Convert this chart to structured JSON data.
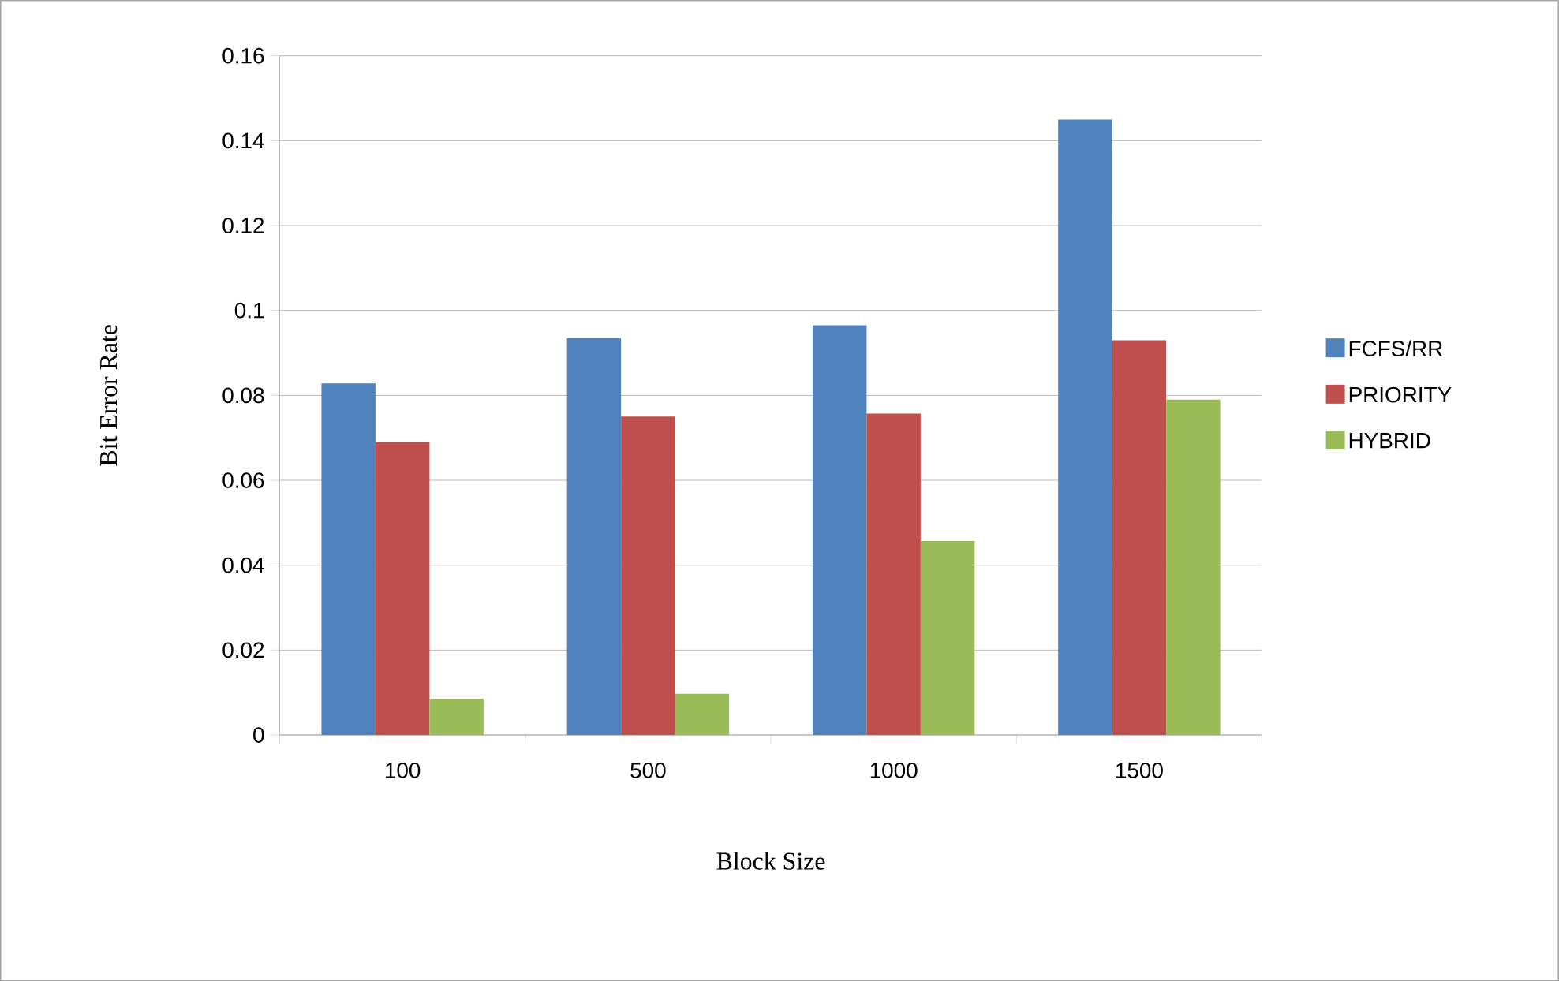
{
  "chart_data": {
    "type": "bar",
    "xlabel": "Block Size",
    "ylabel": "Bit Error Rate",
    "categories": [
      "100",
      "500",
      "1000",
      "1500"
    ],
    "series": [
      {
        "name": "FCFS/RR",
        "color": "#4f81bd",
        "values": [
          0.0828,
          0.0935,
          0.0965,
          0.145
        ]
      },
      {
        "name": "PRIORITY",
        "color": "#c0504d",
        "values": [
          0.069,
          0.075,
          0.0757,
          0.093
        ]
      },
      {
        "name": "HYBRID",
        "color": "#9bbb59",
        "values": [
          0.0085,
          0.0097,
          0.0457,
          0.079
        ]
      }
    ],
    "ylim": [
      0,
      0.16
    ],
    "yticks": [
      0,
      0.02,
      0.04,
      0.06,
      0.08,
      0.1,
      0.12,
      0.14,
      0.16
    ],
    "grid": "y",
    "legend": "right"
  }
}
